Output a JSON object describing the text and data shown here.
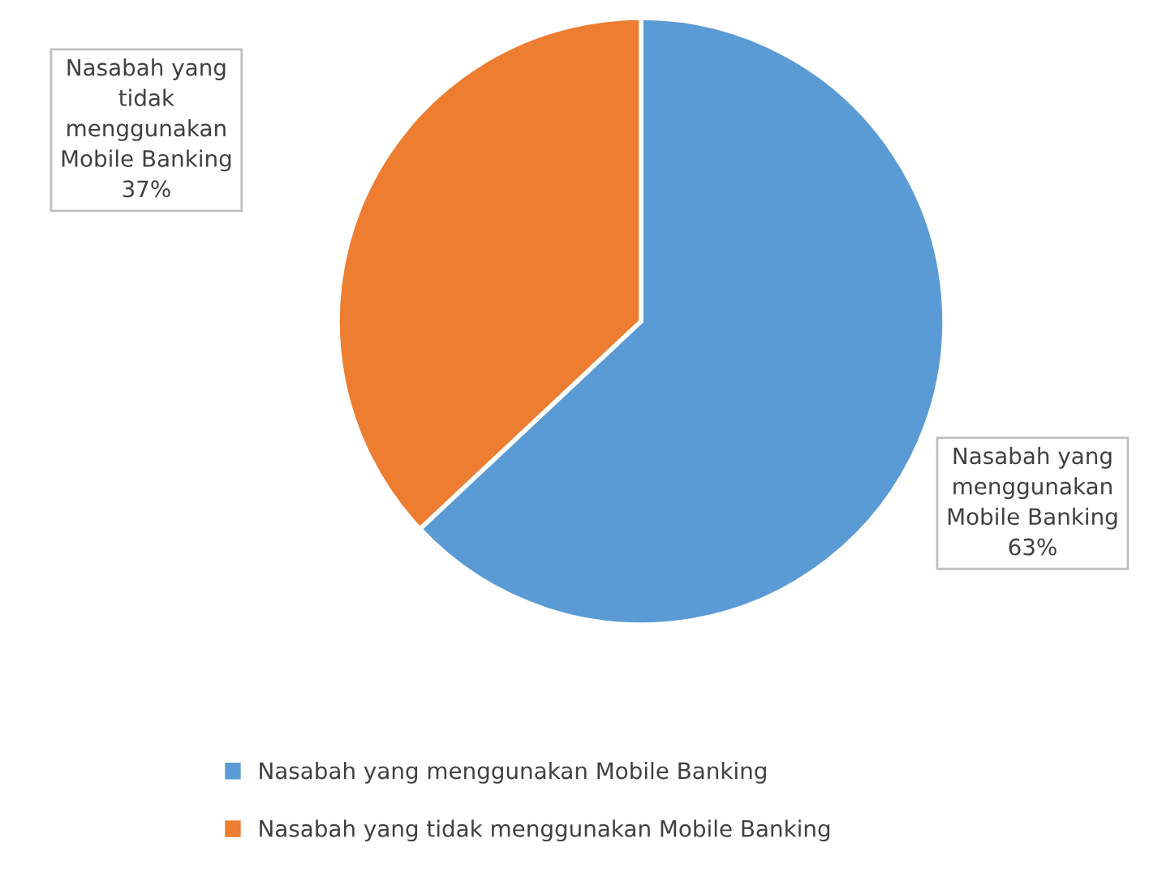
{
  "chart_data": {
    "type": "pie",
    "categories": [
      "Nasabah yang menggunakan Mobile Banking",
      "Nasabah yang tidak menggunakan Mobile Banking"
    ],
    "values": [
      63,
      37
    ],
    "colors": [
      "#5b9bd5",
      "#ed7d31"
    ],
    "value_labels": [
      "63%",
      "37%"
    ],
    "legend": "bottom"
  }
}
